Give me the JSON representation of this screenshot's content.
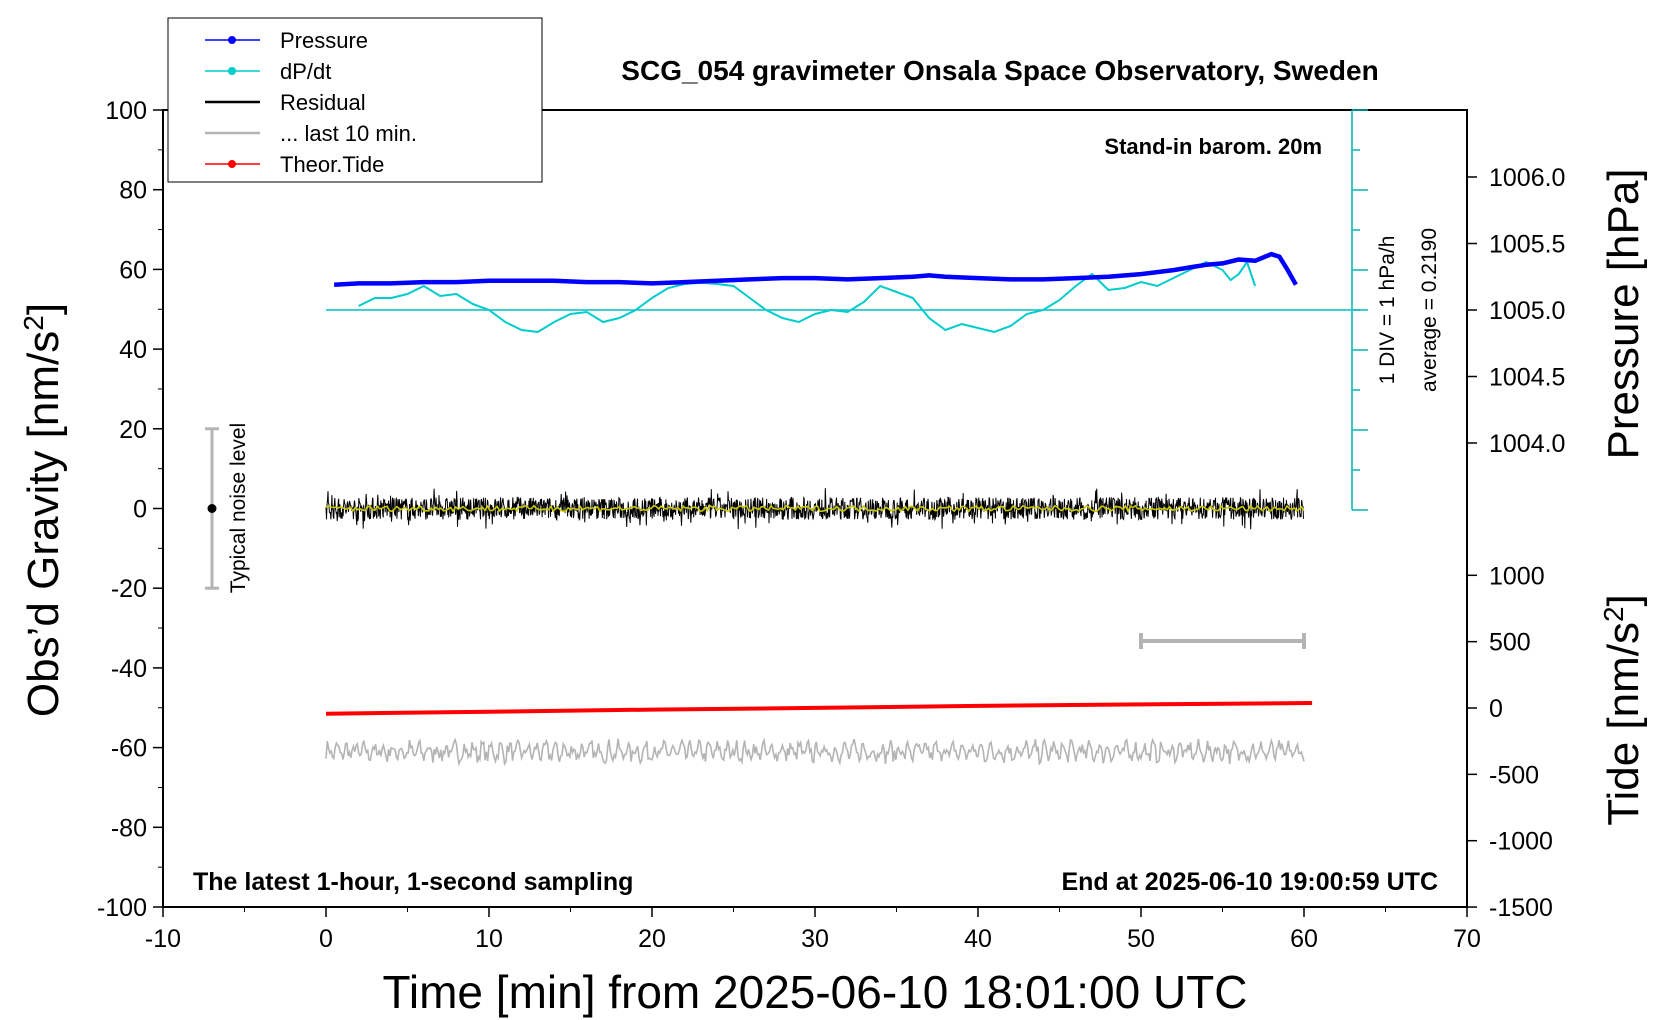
{
  "chart_data": {
    "type": "line",
    "title": "SCG_054 gravimeter Onsala Space Observatory, Sweden",
    "xlabel": "Time [min] from 2025-06-10 18:01:00 UTC",
    "ylabel_left": "Obs’d Gravity [nm/s",
    "ylabel_left_sup": "2",
    "ylabel_left_end": "]",
    "ylabel_right_pressure": "Pressure [hPa]",
    "ylabel_right_tide": "Tide [nm/s",
    "ylabel_right_tide_sup": "2",
    "ylabel_right_tide_end": "]",
    "xlim": [
      -10,
      70
    ],
    "ylim_left": [
      -100,
      100
    ],
    "pressure_range": [
      1003.5,
      1006.5
    ],
    "tide_range": [
      -1500,
      1500
    ],
    "x_ticks": [
      -10,
      0,
      10,
      20,
      30,
      40,
      50,
      60,
      70
    ],
    "y_ticks_left": [
      -100,
      -80,
      -60,
      -40,
      -20,
      0,
      20,
      40,
      60,
      80,
      100
    ],
    "pressure_ticks": [
      "1004.0",
      "1004.5",
      "1005.0",
      "1005.5",
      "1006.0"
    ],
    "tide_ticks": [
      "-1500",
      "-1000",
      "-500",
      "0",
      "500",
      "1000"
    ],
    "annotations": {
      "stand_in": "Stand-in barom. 20m",
      "latest": "The latest 1-hour, 1-second sampling",
      "end_at": "End at 2025-06-10 19:00:59 UTC",
      "noise": "Typical noise level",
      "div": "1 DIV = 1 hPa/h",
      "average": "average = 0.2190"
    },
    "legend": [
      {
        "label": "Pressure",
        "color": "#0000ff",
        "marker": true
      },
      {
        "label": "dP/dt",
        "color": "#00cccc",
        "marker": true
      },
      {
        "label": "Residual",
        "color": "#000000",
        "marker": false
      },
      {
        "label": "... last 10 min.",
        "color": "#b4b4b4",
        "marker": false
      },
      {
        "label": "Theor.Tide",
        "color": "#ff0000",
        "marker": true
      }
    ],
    "series": [
      {
        "name": "Pressure",
        "unit": "hPa",
        "color": "#0000ff",
        "x": [
          0.5,
          2,
          4,
          6,
          8,
          10,
          12,
          14,
          16,
          18,
          20,
          22,
          24,
          26,
          28,
          30,
          32,
          34,
          36,
          37,
          38,
          40,
          42,
          44,
          46,
          48,
          50,
          52,
          53,
          54,
          55,
          56,
          57,
          58,
          58.5,
          59,
          59.5
        ],
        "y": [
          1005.19,
          1005.2,
          1005.2,
          1005.21,
          1005.21,
          1005.22,
          1005.22,
          1005.22,
          1005.21,
          1005.21,
          1005.2,
          1005.21,
          1005.22,
          1005.23,
          1005.24,
          1005.24,
          1005.23,
          1005.24,
          1005.25,
          1005.26,
          1005.25,
          1005.24,
          1005.23,
          1005.23,
          1005.24,
          1005.25,
          1005.27,
          1005.3,
          1005.32,
          1005.34,
          1005.35,
          1005.38,
          1005.37,
          1005.42,
          1005.4,
          1005.3,
          1005.19
        ]
      },
      {
        "name": "dP/dt",
        "unit": "DIV offset",
        "color": "#00cccc",
        "x": [
          2,
          3,
          4,
          5,
          6,
          7,
          8,
          9,
          10,
          11,
          12,
          13,
          14,
          15,
          16,
          17,
          18,
          19,
          20,
          21,
          22,
          23,
          24,
          25,
          26,
          27,
          28,
          29,
          30,
          31,
          32,
          33,
          34,
          35,
          36,
          37,
          38,
          39,
          40,
          41,
          42,
          43,
          44,
          45,
          46,
          47,
          48,
          49,
          50,
          51,
          52,
          53,
          54,
          55,
          55.5,
          56,
          56.5,
          57
        ],
        "y": [
          0.1,
          0.3,
          0.3,
          0.4,
          0.6,
          0.35,
          0.4,
          0.15,
          0.0,
          -0.3,
          -0.5,
          -0.55,
          -0.3,
          -0.1,
          -0.05,
          -0.3,
          -0.2,
          0.0,
          0.3,
          0.55,
          0.65,
          0.68,
          0.65,
          0.6,
          0.3,
          0.0,
          -0.2,
          -0.3,
          -0.1,
          0.0,
          -0.05,
          0.2,
          0.6,
          0.45,
          0.3,
          -0.2,
          -0.5,
          -0.35,
          -0.45,
          -0.55,
          -0.4,
          -0.1,
          0.0,
          0.25,
          0.6,
          0.9,
          0.5,
          0.55,
          0.7,
          0.6,
          0.8,
          1.0,
          1.2,
          1.0,
          0.75,
          0.9,
          1.2,
          0.6
        ]
      },
      {
        "name": "Residual",
        "unit": "nm/s2",
        "color": "#000000",
        "x_range": [
          0,
          60
        ],
        "level": 0,
        "amplitude": 4
      },
      {
        "name": "... last 10 min.",
        "unit": "nm/s2",
        "color": "#b4b4b4",
        "x_range": [
          0,
          60
        ],
        "level": -61,
        "amplitude": 2.5
      },
      {
        "name": "Theor.Tide",
        "unit": "nm/s2",
        "color": "#ff0000",
        "x": [
          0,
          10,
          20,
          30,
          40,
          50,
          60.5
        ],
        "y": [
          -40,
          -30,
          -20,
          -12,
          -2,
          5,
          12
        ]
      }
    ]
  }
}
